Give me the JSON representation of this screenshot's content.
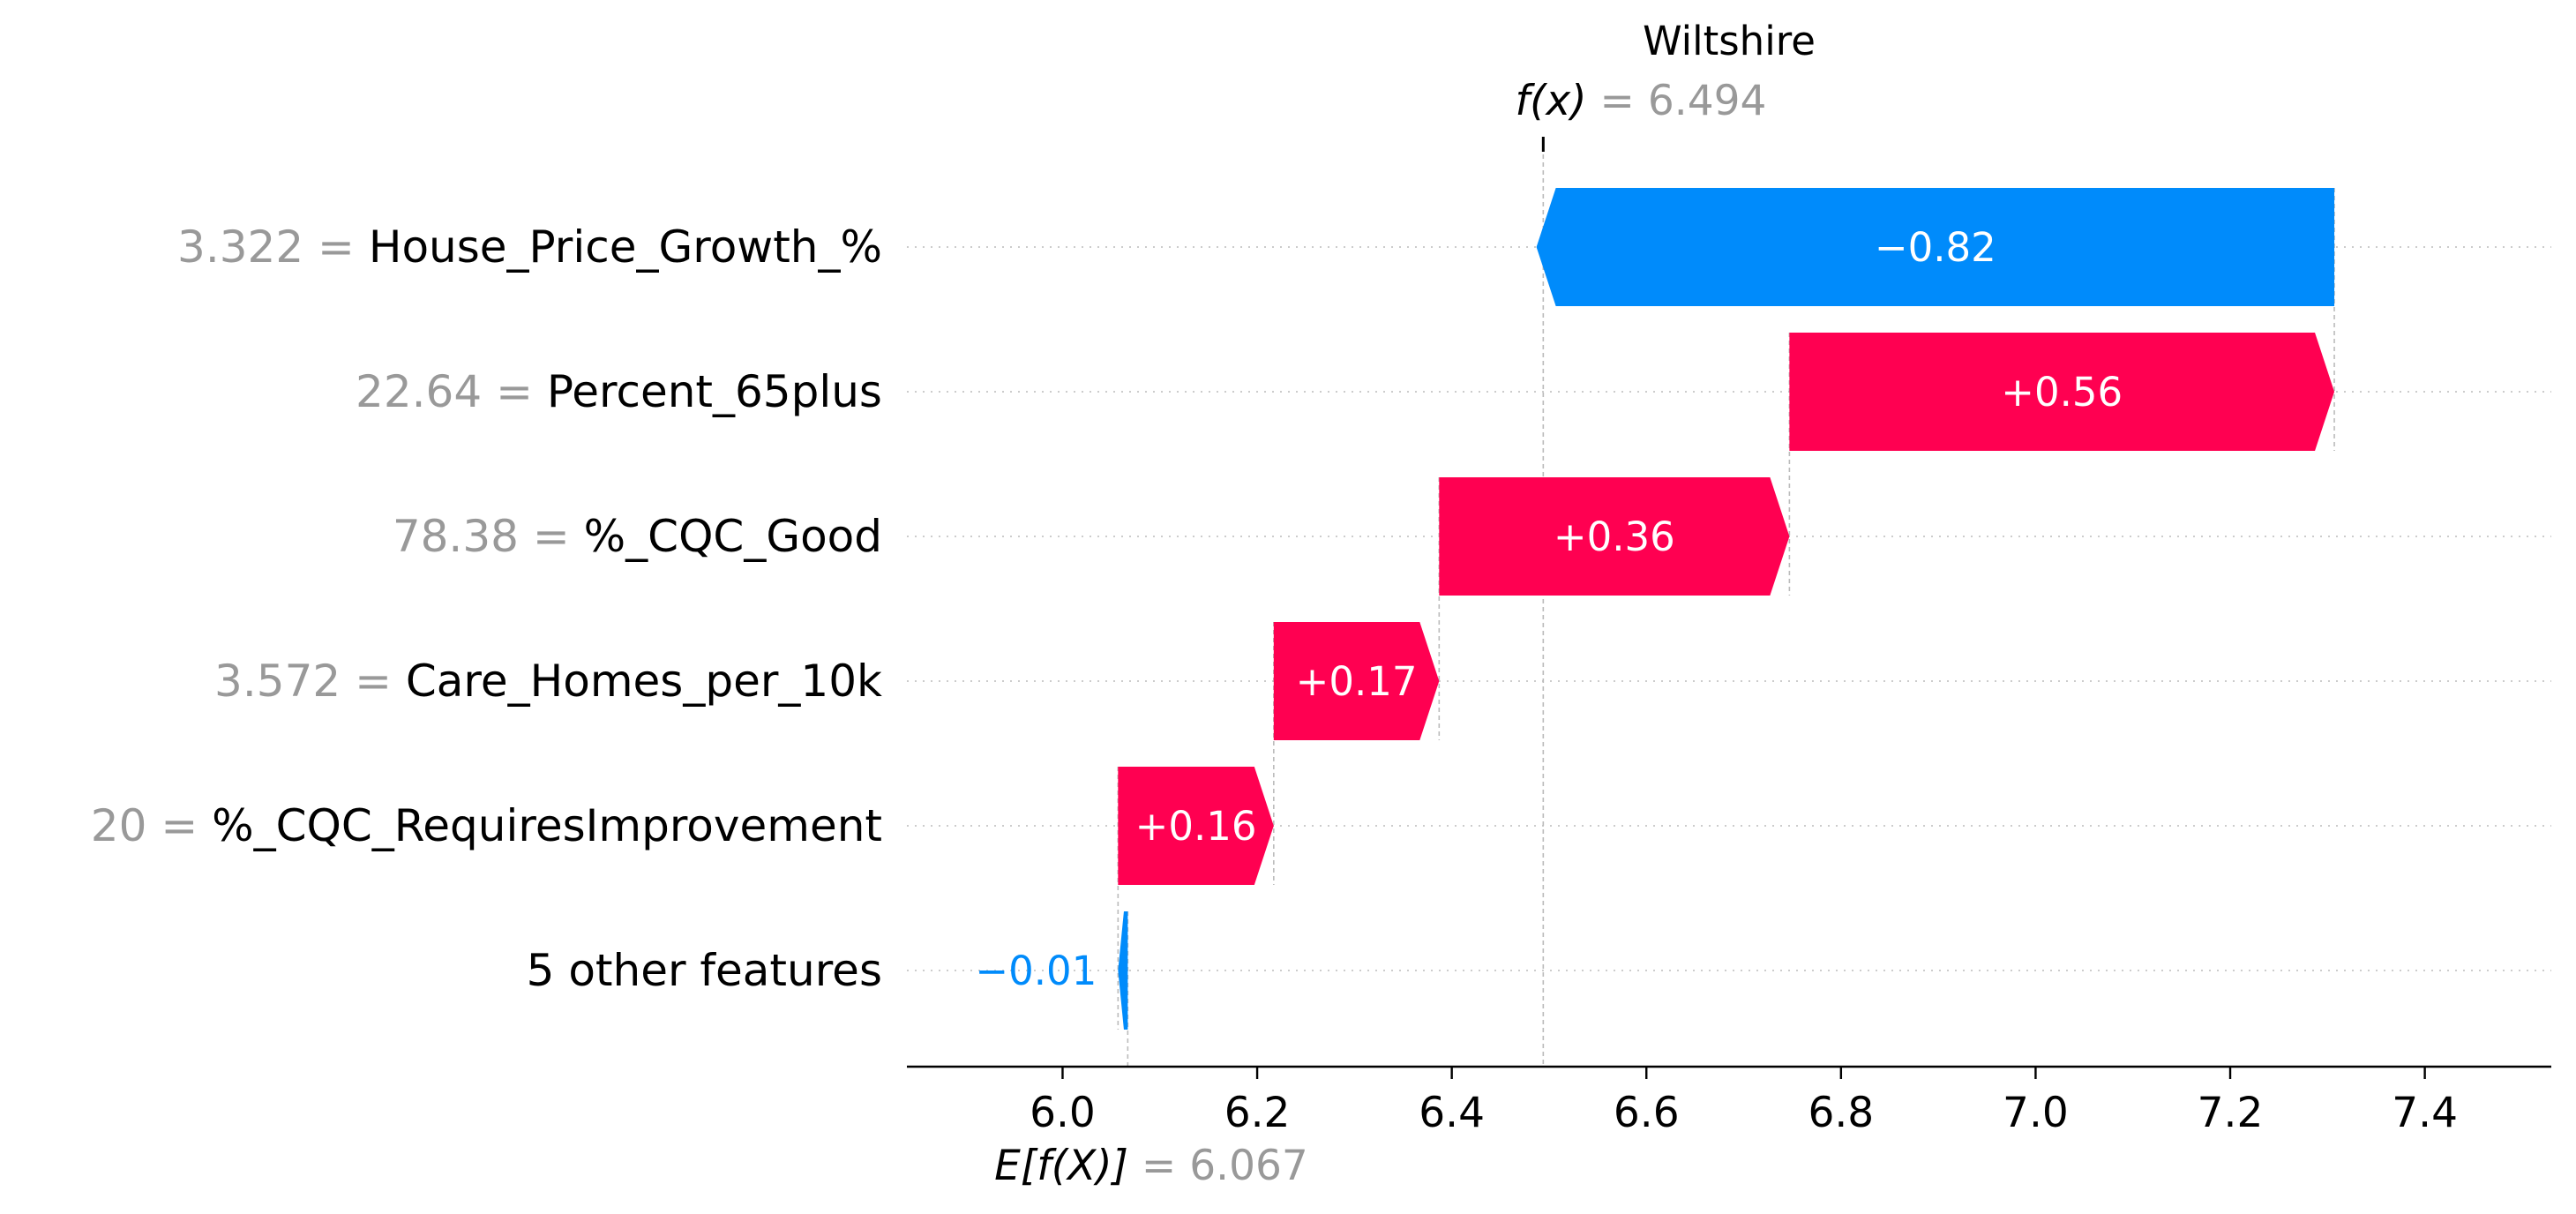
{
  "chart_data": {
    "type": "waterfall",
    "title": "Wiltshire",
    "fx_label": "f(x)",
    "fx_value": "6.494",
    "ex_label": "E[f(X)]",
    "ex_value": "6.067",
    "base_value": 6.067,
    "final_value": 6.494,
    "xlim": [
      5.84,
      7.53
    ],
    "x_ticks": [
      6.0,
      6.2,
      6.4,
      6.6,
      6.8,
      7.0,
      7.2,
      7.4
    ],
    "x_tick_labels": [
      "6.0",
      "6.2",
      "6.4",
      "6.6",
      "6.8",
      "7.0",
      "7.2",
      "7.4"
    ],
    "features": [
      {
        "value": "3.322",
        "name": "House_Price_Growth_%",
        "contribution": -0.82,
        "label": "−0.82"
      },
      {
        "value": "22.64",
        "name": "Percent_65plus",
        "contribution": 0.56,
        "label": "+0.56"
      },
      {
        "value": "78.38",
        "name": "%_CQC_Good",
        "contribution": 0.36,
        "label": "+0.36"
      },
      {
        "value": "3.572",
        "name": "Care_Homes_per_10k",
        "contribution": 0.17,
        "label": "+0.17"
      },
      {
        "value": "20",
        "name": "%_CQC_RequiresImprovement",
        "contribution": 0.16,
        "label": "+0.16"
      },
      {
        "value": "",
        "name": "5 other features",
        "contribution": -0.01,
        "label": "−0.01"
      }
    ],
    "colors": {
      "positive": "#ff0051",
      "negative": "#008bfb",
      "feature_value_text": "#999999",
      "text": "#000000"
    }
  }
}
